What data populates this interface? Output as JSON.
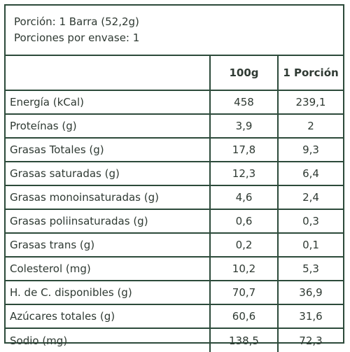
{
  "serving": {
    "portion": "Porción: 1 Barra (52,2g)",
    "per_container": "Porciones por envase: 1"
  },
  "table": {
    "headers": [
      "",
      "100g",
      "1 Porción"
    ],
    "rows": [
      {
        "label": "Energía (kCal)",
        "per100g": "458",
        "perPortion": "239,1"
      },
      {
        "label": "Proteínas (g)",
        "per100g": "3,9",
        "perPortion": "2"
      },
      {
        "label": "Grasas Totales (g)",
        "per100g": "17,8",
        "perPortion": "9,3"
      },
      {
        "label": "Grasas saturadas (g)",
        "per100g": "12,3",
        "perPortion": "6,4"
      },
      {
        "label": "Grasas monoinsaturadas (g)",
        "per100g": "4,6",
        "perPortion": "2,4"
      },
      {
        "label": "Grasas poliinsaturadas (g)",
        "per100g": "0,6",
        "perPortion": "0,3"
      },
      {
        "label": "Grasas trans (g)",
        "per100g": "0,2",
        "perPortion": "0,1"
      },
      {
        "label": "Colesterol (mg)",
        "per100g": "10,2",
        "perPortion": "5,3"
      },
      {
        "label": "H. de C. disponibles (g)",
        "per100g": "70,7",
        "perPortion": "36,9"
      },
      {
        "label": "Azúcares totales (g)",
        "per100g": "60,6",
        "perPortion": "31,6"
      },
      {
        "label": "Sodio (mg)",
        "per100g": "138,5",
        "perPortion": "72,3"
      }
    ]
  },
  "colors": {
    "border": "#2c4a3a",
    "text": "#2f3a33",
    "background": "#ffffff"
  }
}
